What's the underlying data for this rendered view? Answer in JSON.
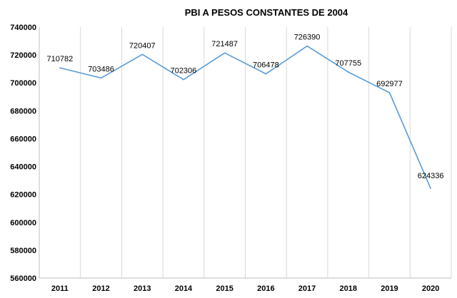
{
  "chart_data": {
    "type": "line",
    "title": "PBI A PESOS CONSTANTES  DE 2004",
    "xlabel": "",
    "ylabel": "",
    "categories": [
      "2011",
      "2012",
      "2013",
      "2014",
      "2015",
      "2016",
      "2017",
      "2018",
      "2019",
      "2020"
    ],
    "series": [
      {
        "values": [
          710782,
          703486,
          720407,
          702306,
          721487,
          706478,
          726390,
          707755,
          692977,
          624336
        ],
        "color": "#5b9bd5"
      }
    ],
    "data_labels": [
      "710782",
      "703486",
      "720407",
      "702306",
      "721487",
      "706478",
      "726390",
      "707755",
      "692977",
      "624336"
    ],
    "ylim": [
      560000,
      740000
    ],
    "yticks": [
      560000,
      580000,
      600000,
      620000,
      640000,
      660000,
      680000,
      700000,
      720000,
      740000
    ],
    "ytick_labels": [
      "560000",
      "580000",
      "600000",
      "620000",
      "640000",
      "660000",
      "680000",
      "700000",
      "720000",
      "740000"
    ],
    "grid": "vertical",
    "legend": "none"
  }
}
